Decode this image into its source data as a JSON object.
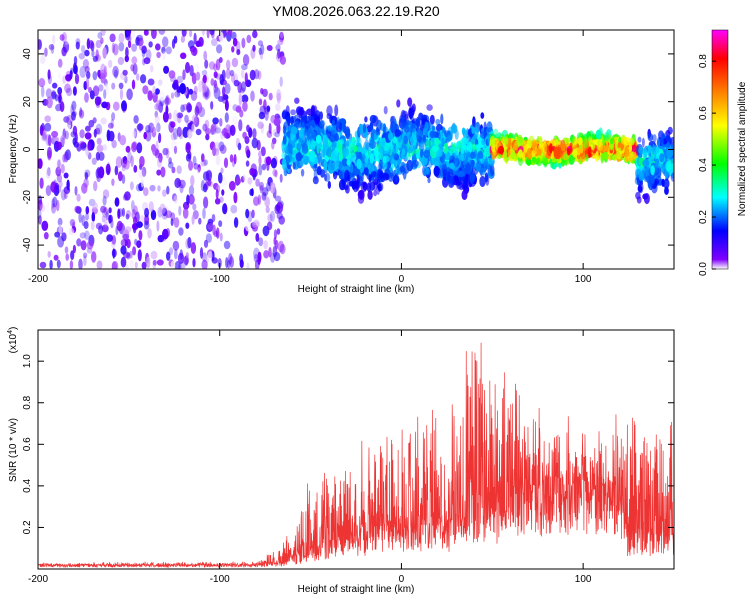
{
  "title": "YM08.2026.063.22.19.R20",
  "chart_data": [
    {
      "type": "heatmap",
      "name": "spectrogram",
      "xlabel": "Height of straight line (km)",
      "ylabel": "Frequency (Hz)",
      "xlim": [
        -200,
        150
      ],
      "ylim": [
        -50,
        50
      ],
      "xticks": [
        -200,
        -100,
        0,
        100
      ],
      "yticks": [
        -40,
        -20,
        0,
        20,
        40
      ],
      "colorbar": {
        "label": "Normalized spectral amplitude",
        "range": [
          0,
          0.92
        ],
        "ticks": [
          "0.0",
          "0.2",
          "0.4",
          "0.6",
          "0.8"
        ],
        "tick_values": [
          0,
          0.2,
          0.4,
          0.6,
          0.8
        ],
        "colors": [
          "#ffffff",
          "#8000ff",
          "#0000ff",
          "#00ffff",
          "#00ff00",
          "#ffff00",
          "#ff8000",
          "#ff0000",
          "#ff00ff"
        ]
      },
      "regions": [
        {
          "x": [
            -200,
            -65
          ],
          "description_level": "noise",
          "amplitude": [
            0.0,
            0.12
          ]
        },
        {
          "x": [
            -65,
            50
          ],
          "center_hz": 0,
          "spread_hz": 12,
          "amplitude": [
            0.1,
            0.35
          ]
        },
        {
          "x": [
            50,
            130
          ],
          "center_hz": 0,
          "spread_hz": 4,
          "amplitude": [
            0.3,
            0.92
          ]
        },
        {
          "x": [
            130,
            150
          ],
          "center_hz": -5,
          "spread_hz": 10,
          "amplitude": [
            0.1,
            0.35
          ]
        }
      ]
    },
    {
      "type": "line",
      "name": "snr",
      "xlabel": "Height of straight line (km)",
      "ylabel": "SNR (10 * v/v)",
      "scale_label": "(x10",
      "scale_exp": "4",
      "scale_close": ")",
      "xlim": [
        -200,
        150
      ],
      "ylim": [
        0,
        1.15
      ],
      "xticks": [
        -200,
        -100,
        0,
        100
      ],
      "yticks": [
        "0.2",
        "0.4",
        "0.6",
        "0.8",
        "1.0"
      ],
      "ytick_values": [
        0.2,
        0.4,
        0.6,
        0.8,
        1.0
      ],
      "color": "#ee3333",
      "envelope": {
        "x": [
          -200,
          -80,
          -65,
          -50,
          -40,
          -20,
          0,
          20,
          30,
          40,
          45,
          50,
          60,
          70,
          80,
          100,
          120,
          125,
          140,
          150
        ],
        "baseline": [
          0.02,
          0.02,
          0.03,
          0.08,
          0.12,
          0.15,
          0.18,
          0.2,
          0.2,
          0.22,
          0.24,
          0.25,
          0.35,
          0.37,
          0.38,
          0.38,
          0.36,
          0.12,
          0.15,
          0.15
        ],
        "peak": [
          0.03,
          0.035,
          0.12,
          0.44,
          0.5,
          0.6,
          0.72,
          0.82,
          0.9,
          1.15,
          1.12,
          1.05,
          0.95,
          0.8,
          0.72,
          0.68,
          0.75,
          0.78,
          0.75,
          0.72
        ]
      }
    }
  ]
}
